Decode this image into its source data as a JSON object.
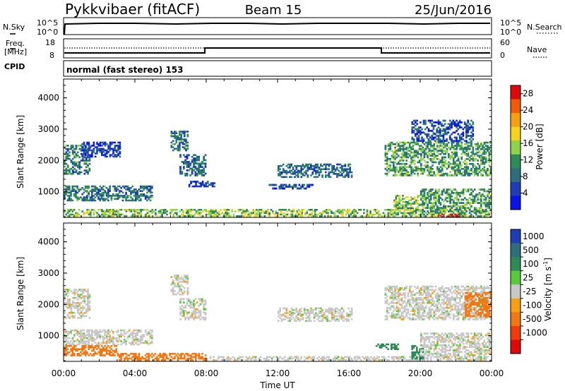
{
  "header": {
    "title": "Pykkvibaer (fitACF)",
    "beam": "Beam 15",
    "date": "25/Jun/2016"
  },
  "strip_nsky": {
    "left_label": "N.Sky",
    "left_ticks": [
      "10^5",
      "10^0"
    ],
    "right_label": "N.Search",
    "right_ticks": [
      "10^5",
      "10^0"
    ]
  },
  "strip_freq": {
    "left_label_line1": "Freq.",
    "left_label_line2": "[MHz]",
    "left_ticks": [
      "18",
      "8"
    ],
    "right_label": "Nave",
    "right_ticks": [
      "60",
      "0"
    ]
  },
  "strip_cpid": {
    "label": "CPID",
    "value": "normal (fast stereo) 153"
  },
  "chart_data": [
    {
      "type": "heatmap",
      "name": "power",
      "ylabel": "Slant Range [km]",
      "ylim": [
        180,
        4600
      ],
      "yticks": [
        1000,
        2000,
        3000,
        4000
      ],
      "xlim": [
        0,
        24
      ],
      "colorbar": {
        "label": "Power [dB]",
        "range": [
          0,
          30
        ],
        "ticks": [
          4,
          8,
          12,
          16,
          20,
          24,
          28
        ],
        "colors": [
          "#0a14e6",
          "#1e3cb4",
          "#2d6e7d",
          "#2e8b57",
          "#8fd34a",
          "#f5d21e",
          "#f5a014",
          "#f05a0a",
          "#dc0a0a"
        ]
      },
      "regions": [
        {
          "t": [
            0.0,
            1.5
          ],
          "r": [
            1550,
            2500
          ],
          "level": 10
        },
        {
          "t": [
            0.0,
            5.0
          ],
          "r": [
            700,
            1200
          ],
          "level": 9
        },
        {
          "t": [
            0.0,
            24.0
          ],
          "r": [
            200,
            450
          ],
          "level": 14
        },
        {
          "t": [
            1.0,
            3.2
          ],
          "r": [
            2100,
            2600
          ],
          "level": 4
        },
        {
          "t": [
            6.0,
            7.0
          ],
          "r": [
            2300,
            2950
          ],
          "level": 9
        },
        {
          "t": [
            6.5,
            8.0
          ],
          "r": [
            1500,
            2200
          ],
          "level": 8
        },
        {
          "t": [
            7.0,
            8.5
          ],
          "r": [
            1150,
            1350
          ],
          "level": 6
        },
        {
          "t": [
            11.5,
            14.0
          ],
          "r": [
            1080,
            1250
          ],
          "level": 6
        },
        {
          "t": [
            12.0,
            16.2
          ],
          "r": [
            1450,
            1900
          ],
          "level": 8
        },
        {
          "t": [
            18.0,
            24.0
          ],
          "r": [
            1500,
            2600
          ],
          "level": 12
        },
        {
          "t": [
            19.5,
            23.0
          ],
          "r": [
            2600,
            3300
          ],
          "level": 6
        },
        {
          "t": [
            18.5,
            20.0
          ],
          "r": [
            400,
            900
          ],
          "level": 14
        },
        {
          "t": [
            20.0,
            24.0
          ],
          "r": [
            350,
            1100
          ],
          "level": 12
        },
        {
          "t": [
            21.0,
            22.2
          ],
          "r": [
            180,
            300
          ],
          "level": 30
        }
      ]
    },
    {
      "type": "heatmap",
      "name": "velocity",
      "ylabel": "Slant Range [km]",
      "xlabel": "Time UT",
      "ylim": [
        180,
        4600
      ],
      "yticks": [
        1000,
        2000,
        3000,
        4000
      ],
      "xlim": [
        0,
        24
      ],
      "xticks": [
        "00:00",
        "04:00",
        "08:00",
        "12:00",
        "16:00",
        "20:00",
        "00:00"
      ],
      "colorbar": {
        "label": "Velocity [m s^-1]",
        "ticks": [
          "1000",
          "500",
          "100",
          "25",
          "-25",
          "-100",
          "-500",
          "-1000"
        ],
        "colors": [
          "#1e3cb4",
          "#2d6e7d",
          "#2e8b57",
          "#5ac83c",
          "#c8c8c8",
          "#f5a014",
          "#f07814",
          "#f03c0a",
          "#dc0a0a"
        ]
      },
      "regions": [
        {
          "t": [
            0.0,
            1.5
          ],
          "r": [
            1550,
            2500
          ],
          "v": 0
        },
        {
          "t": [
            0.0,
            5.0
          ],
          "r": [
            700,
            1200
          ],
          "v": 0
        },
        {
          "t": [
            0.0,
            3.0
          ],
          "r": [
            350,
            700
          ],
          "v": -100
        },
        {
          "t": [
            3.0,
            8.0
          ],
          "r": [
            200,
            450
          ],
          "v": -100
        },
        {
          "t": [
            8.0,
            24.0
          ],
          "r": [
            200,
            350
          ],
          "v": 0
        },
        {
          "t": [
            6.0,
            7.0
          ],
          "r": [
            2300,
            2950
          ],
          "v": 0
        },
        {
          "t": [
            6.5,
            8.0
          ],
          "r": [
            1500,
            2200
          ],
          "v": 0
        },
        {
          "t": [
            12.0,
            16.2
          ],
          "r": [
            1450,
            1900
          ],
          "v": 0
        },
        {
          "t": [
            18.0,
            24.0
          ],
          "r": [
            1500,
            2600
          ],
          "v": 0
        },
        {
          "t": [
            17.5,
            18.8
          ],
          "r": [
            550,
            750
          ],
          "v": 100
        },
        {
          "t": [
            19.5,
            20.2
          ],
          "r": [
            250,
            700
          ],
          "v": 100
        },
        {
          "t": [
            20.0,
            24.0
          ],
          "r": [
            350,
            1100
          ],
          "v": 0
        },
        {
          "t": [
            22.5,
            24.0
          ],
          "r": [
            1600,
            2400
          ],
          "v": -100
        }
      ]
    }
  ]
}
